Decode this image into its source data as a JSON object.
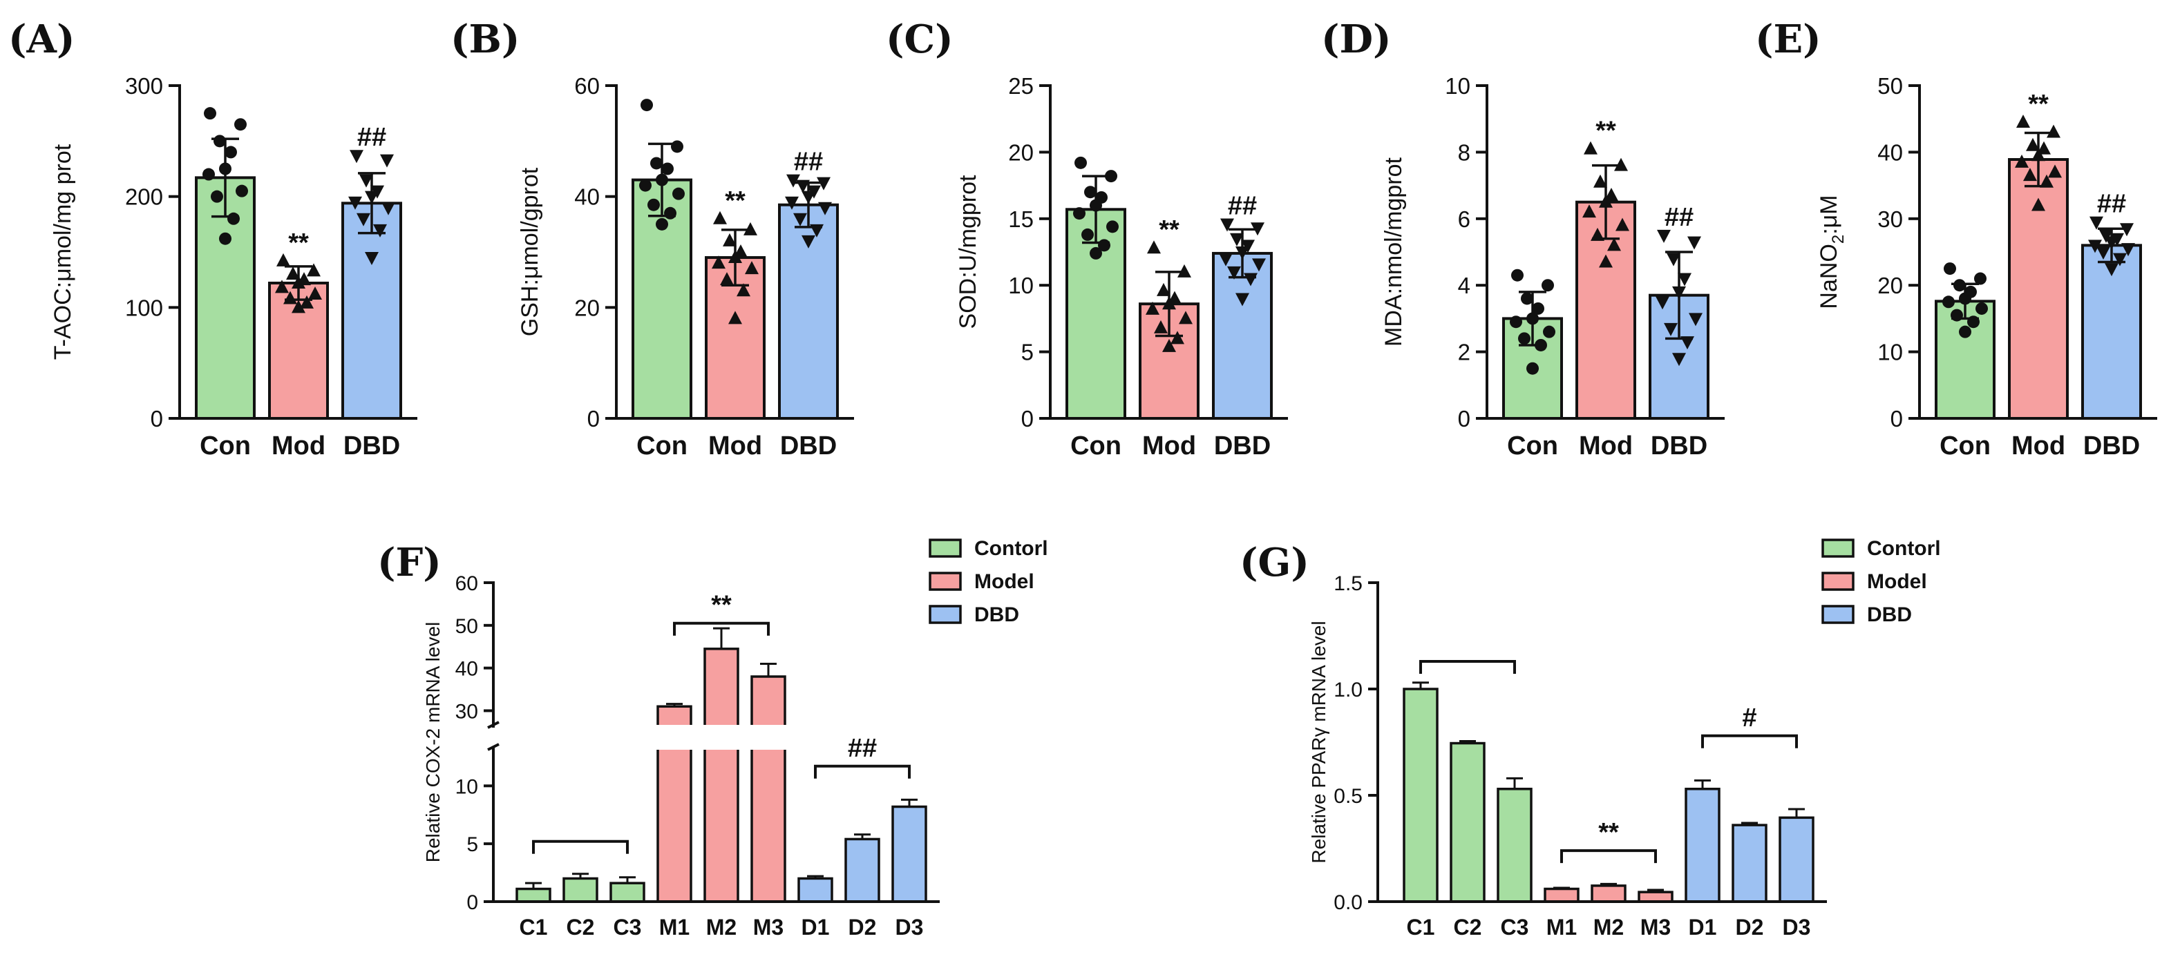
{
  "colors": {
    "con": "#a6dea1",
    "mod": "#f6a0a0",
    "dbd": "#9dc1f2",
    "edge": "#111111"
  },
  "chart_data": [
    {
      "panel": "(A)",
      "type": "bar",
      "categories": [
        "Con",
        "Mod",
        "DBD"
      ],
      "values": [
        217,
        122,
        194
      ],
      "sd": [
        35,
        15,
        27
      ],
      "points": [
        [
          275,
          265,
          250,
          240,
          225,
          220,
          205,
          200,
          180,
          162
        ],
        [
          142,
          133,
          130,
          125,
          122,
          118,
          112,
          108,
          104,
          100
        ],
        [
          237,
          233,
          215,
          205,
          200,
          195,
          190,
          180,
          170,
          145
        ]
      ],
      "annotations": [
        "",
        "**",
        "##"
      ],
      "ylabel": "T-AOC:μmol/mg prot",
      "ylim": [
        0,
        300
      ],
      "yticks": [
        "0",
        "100",
        "200",
        "300"
      ]
    },
    {
      "panel": "(B)",
      "type": "bar",
      "categories": [
        "Con",
        "Mod",
        "DBD"
      ],
      "values": [
        43,
        29,
        38.5
      ],
      "sd": [
        6.5,
        5,
        4
      ],
      "points": [
        [
          56.5,
          49,
          46,
          45,
          43,
          42,
          40.5,
          38.5,
          37,
          35
        ],
        [
          36,
          34,
          32,
          30,
          29,
          28,
          27,
          25,
          23,
          18
        ],
        [
          43,
          42.5,
          42,
          41,
          40,
          39,
          38,
          36,
          34,
          32
        ]
      ],
      "annotations": [
        "",
        "**",
        "##"
      ],
      "ylabel": "GSH:μmol/gprot",
      "ylim": [
        0,
        60
      ],
      "yticks": [
        "0",
        "20",
        "40",
        "60"
      ]
    },
    {
      "panel": "(C)",
      "type": "bar",
      "categories": [
        "Con",
        "Mod",
        "DBD"
      ],
      "values": [
        15.7,
        8.6,
        12.4
      ],
      "sd": [
        2.5,
        2.4,
        1.8
      ],
      "points": [
        [
          19.2,
          18.2,
          17,
          16.6,
          16,
          15.4,
          14.4,
          13.8,
          13,
          12.4
        ],
        [
          12.8,
          11,
          9.6,
          9,
          8.6,
          8.2,
          7.5,
          6.8,
          6,
          5.4
        ],
        [
          14.6,
          14.3,
          13.5,
          13,
          12.5,
          12,
          11.6,
          11,
          10.5,
          9
        ]
      ],
      "annotations": [
        "",
        "**",
        "##"
      ],
      "ylabel": "SOD:U/mgprot",
      "ylim": [
        0,
        25
      ],
      "yticks": [
        "0",
        "5",
        "10",
        "15",
        "20",
        "25"
      ]
    },
    {
      "panel": "(D)",
      "type": "bar",
      "categories": [
        "Con",
        "Mod",
        "DBD"
      ],
      "values": [
        3.0,
        6.5,
        3.7
      ],
      "sd": [
        0.8,
        1.1,
        1.3
      ],
      "points": [
        [
          4.3,
          4.0,
          3.6,
          3.3,
          3.0,
          2.9,
          2.6,
          2.4,
          2.2,
          1.5
        ],
        [
          8.1,
          7.6,
          7.1,
          6.7,
          6.5,
          6.2,
          5.8,
          5.5,
          5.2,
          4.7
        ],
        [
          5.5,
          5.3,
          4.8,
          4.2,
          3.8,
          3.5,
          3.0,
          2.7,
          2.3,
          1.8
        ]
      ],
      "annotations": [
        "",
        "**",
        "##"
      ],
      "ylabel": "MDA:nmol/mgprot",
      "ylim": [
        0,
        10
      ],
      "yticks": [
        "0",
        "2",
        "4",
        "6",
        "8",
        "10"
      ]
    },
    {
      "panel": "(E)",
      "type": "bar",
      "categories": [
        "Con",
        "Mod",
        "DBD"
      ],
      "values": [
        17.6,
        38.9,
        26
      ],
      "sd": [
        2.6,
        4,
        2.5
      ],
      "points": [
        [
          22.5,
          21,
          20,
          19,
          18,
          17.5,
          16.5,
          15.5,
          14.5,
          13
        ],
        [
          44.5,
          43,
          41,
          40.5,
          39.5,
          38.5,
          37,
          36.5,
          35.5,
          32
        ],
        [
          29.5,
          28.5,
          27.5,
          27,
          26.5,
          26,
          25.5,
          25,
          24,
          22.5
        ]
      ],
      "annotations": [
        "",
        "**",
        "##"
      ],
      "ylabel": "NaNO",
      "ylabel_sub": "2",
      "ylabel_tail": ":μM",
      "ylim": [
        0,
        50
      ],
      "yticks": [
        "0",
        "10",
        "20",
        "30",
        "40",
        "50"
      ]
    },
    {
      "panel": "(F)",
      "type": "bar",
      "categories": [
        "C1",
        "C2",
        "C3",
        "M1",
        "M2",
        "M3",
        "D1",
        "D2",
        "D3"
      ],
      "values": [
        1.1,
        2.0,
        1.6,
        31,
        44.5,
        38,
        2.0,
        5.4,
        8.2
      ],
      "err": [
        0.5,
        0.4,
        0.5,
        0.6,
        4.8,
        3,
        0.2,
        0.4,
        0.6
      ],
      "group_colors": [
        "con",
        "con",
        "con",
        "mod",
        "mod",
        "mod",
        "dbd",
        "dbd",
        "dbd"
      ],
      "ylabel": "Relative COX-2 mRNA level",
      "axis_break": [
        13,
        27
      ],
      "lower_ylim": [
        0,
        13
      ],
      "lower_yticks": [
        "0",
        "5",
        "10"
      ],
      "upper_ylim": [
        27,
        60
      ],
      "upper_yticks": [
        "30",
        "40",
        "50",
        "60"
      ],
      "brackets": [
        {
          "from": 0,
          "to": 2,
          "level": 5.2,
          "text": ""
        },
        {
          "from": 3,
          "to": 5,
          "level": 50.5,
          "text": "**"
        },
        {
          "from": 6,
          "to": 8,
          "level": 11.7,
          "text": "##"
        }
      ],
      "legend": [
        "Contorl",
        "Model",
        "DBD"
      ]
    },
    {
      "panel": "(G)",
      "type": "bar",
      "categories": [
        "C1",
        "C2",
        "C3",
        "M1",
        "M2",
        "M3",
        "D1",
        "D2",
        "D3"
      ],
      "values": [
        1.0,
        0.745,
        0.53,
        0.06,
        0.075,
        0.045,
        0.53,
        0.36,
        0.395
      ],
      "err": [
        0.03,
        0.01,
        0.05,
        0.005,
        0.008,
        0.01,
        0.04,
        0.01,
        0.04
      ],
      "group_colors": [
        "con",
        "con",
        "con",
        "mod",
        "mod",
        "mod",
        "dbd",
        "dbd",
        "dbd"
      ],
      "ylabel": "Relative PPARγ mRNA level",
      "ylim": [
        0,
        1.5
      ],
      "yticks": [
        "0.0",
        "0.5",
        "1.0",
        "1.5"
      ],
      "brackets": [
        {
          "from": 0,
          "to": 2,
          "level": 1.13,
          "text": ""
        },
        {
          "from": 3,
          "to": 5,
          "level": 0.24,
          "text": "**"
        },
        {
          "from": 6,
          "to": 8,
          "level": 0.78,
          "text": "#"
        }
      ],
      "legend": [
        "Contorl",
        "Model",
        "DBD"
      ]
    }
  ]
}
